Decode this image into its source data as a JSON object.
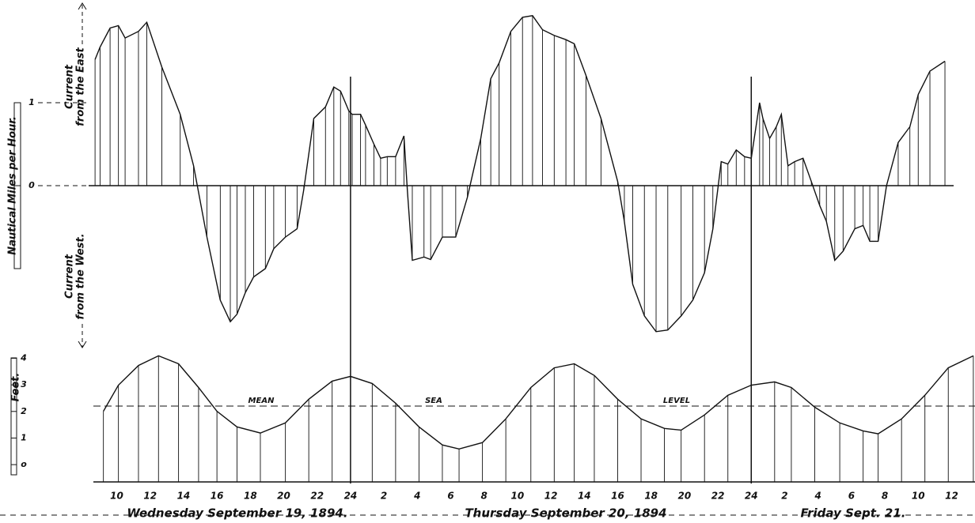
{
  "chart_data": [
    {
      "type": "line",
      "y_label": "Nautical Miles per Hour.",
      "annotations": [
        "Current",
        "from the East",
        "Current",
        "from the West."
      ],
      "x": [
        8.7,
        9.0,
        9.6,
        10.1,
        10.5,
        11.3,
        11.8,
        12.7,
        13.8,
        14.6,
        15.4,
        16.2,
        16.8,
        17.2,
        17.7,
        18.2,
        18.9,
        19.4,
        20.1,
        20.8,
        21.2,
        21.8,
        22.5,
        23.0,
        23.4,
        23.9,
        24.1,
        24.6,
        24.9,
        25.4,
        25.8,
        26.2,
        26.7,
        27.2,
        27.4,
        27.7,
        28.4,
        28.8,
        29.5,
        30.3,
        31.0,
        31.8,
        32.4,
        32.9,
        33.6,
        34.3,
        34.9,
        35.5,
        36.2,
        36.9,
        37.4,
        38.1,
        39.0,
        40.0,
        40.4,
        40.9,
        41.6,
        42.3,
        43.0,
        43.8,
        44.5,
        45.2,
        45.7,
        46.2,
        46.6,
        47.1,
        47.6,
        48.0,
        48.5,
        48.7,
        49.1,
        49.5,
        49.8,
        50.2,
        50.6,
        51.1,
        51.6,
        52.1,
        52.5,
        53.0,
        53.5,
        54.2,
        54.7,
        55.1,
        55.6,
        56.1,
        56.8,
        57.5,
        58.0,
        58.7,
        59.6
      ],
      "values": [
        1.52,
        1.67,
        1.9,
        1.93,
        1.78,
        1.86,
        1.97,
        1.43,
        0.86,
        0.24,
        -0.62,
        -1.38,
        -1.64,
        -1.55,
        -1.29,
        -1.1,
        -1.0,
        -0.76,
        -0.62,
        -0.52,
        -0.05,
        0.81,
        0.95,
        1.19,
        1.14,
        0.9,
        0.86,
        0.86,
        0.73,
        0.5,
        0.33,
        0.35,
        0.35,
        0.6,
        -0.05,
        -0.9,
        -0.86,
        -0.89,
        -0.62,
        -0.62,
        -0.14,
        0.57,
        1.29,
        1.48,
        1.86,
        2.03,
        2.05,
        1.88,
        1.81,
        1.76,
        1.71,
        1.33,
        0.81,
        0.05,
        -0.43,
        -1.19,
        -1.57,
        -1.76,
        -1.74,
        -1.57,
        -1.38,
        -1.05,
        -0.52,
        0.29,
        0.26,
        0.43,
        0.35,
        0.33,
        1.0,
        0.81,
        0.57,
        0.71,
        0.86,
        0.24,
        0.29,
        0.33,
        0.05,
        -0.24,
        -0.43,
        -0.9,
        -0.79,
        -0.52,
        -0.48,
        -0.67,
        -0.67,
        0,
        0.52,
        0.71,
        1.1,
        1.38,
        1.5
      ],
      "color": "#111111",
      "xlim": [
        8.6,
        61.4
      ],
      "ylim": [
        -2,
        2.2
      ],
      "yticks": [
        0,
        1
      ]
    },
    {
      "type": "line",
      "y_label": "Feet.",
      "reference_line": {
        "value": 2.2,
        "labels": [
          "MEAN",
          "SEA",
          "LEVEL"
        ]
      },
      "x": [
        9.2,
        10.1,
        11.3,
        12.5,
        13.7,
        14.9,
        16.0,
        17.2,
        18.6,
        20.1,
        21.5,
        22.9,
        24.0,
        25.3,
        26.7,
        28.1,
        29.5,
        30.5,
        31.9,
        33.3,
        34.8,
        36.2,
        37.4,
        38.6,
        40.0,
        41.4,
        42.8,
        43.8,
        45.2,
        46.6,
        48.0,
        49.4,
        50.4,
        51.8,
        53.3,
        54.7,
        55.6,
        57.0,
        58.4,
        59.8,
        61.3
      ],
      "values": [
        2.01,
        2.99,
        3.73,
        4.09,
        3.79,
        2.9,
        2.01,
        1.42,
        1.19,
        1.57,
        2.46,
        3.14,
        3.32,
        3.05,
        2.31,
        1.42,
        0.74,
        0.59,
        0.83,
        1.72,
        2.9,
        3.64,
        3.79,
        3.35,
        2.46,
        1.72,
        1.36,
        1.3,
        1.87,
        2.61,
        2.99,
        3.11,
        2.9,
        2.16,
        1.57,
        1.27,
        1.16,
        1.72,
        2.61,
        3.64,
        4.09
      ],
      "color": "#111111",
      "xlim": [
        8.6,
        61.4
      ],
      "ylim": [
        -0.65,
        4.4
      ],
      "yticks": [
        {
          "value": 0,
          "label": "o"
        },
        1,
        2,
        3,
        4
      ],
      "xticks": [
        10,
        12,
        14,
        16,
        18,
        20,
        22,
        24,
        {
          "value": 26,
          "label": "2"
        },
        {
          "value": 28,
          "label": "4"
        },
        {
          "value": 30,
          "label": "6"
        },
        {
          "value": 32,
          "label": "8"
        },
        {
          "value": 34,
          "label": "10"
        },
        {
          "value": 36,
          "label": "12"
        },
        {
          "value": 38,
          "label": "14"
        },
        {
          "value": 40,
          "label": "16"
        },
        {
          "value": 42,
          "label": "18"
        },
        {
          "value": 44,
          "label": "20"
        },
        {
          "value": 46,
          "label": "22"
        },
        {
          "value": 48,
          "label": "24"
        },
        {
          "value": 50,
          "label": "2"
        },
        {
          "value": 52,
          "label": "4"
        },
        {
          "value": 54,
          "label": "6"
        },
        {
          "value": 56,
          "label": "8"
        },
        {
          "value": 58,
          "label": "10"
        },
        {
          "value": 60,
          "label": "12"
        }
      ],
      "days": [
        "Wednesday September 19, 1894.",
        "Thursday September 20, 1894",
        "Friday Sept. 21."
      ]
    }
  ]
}
